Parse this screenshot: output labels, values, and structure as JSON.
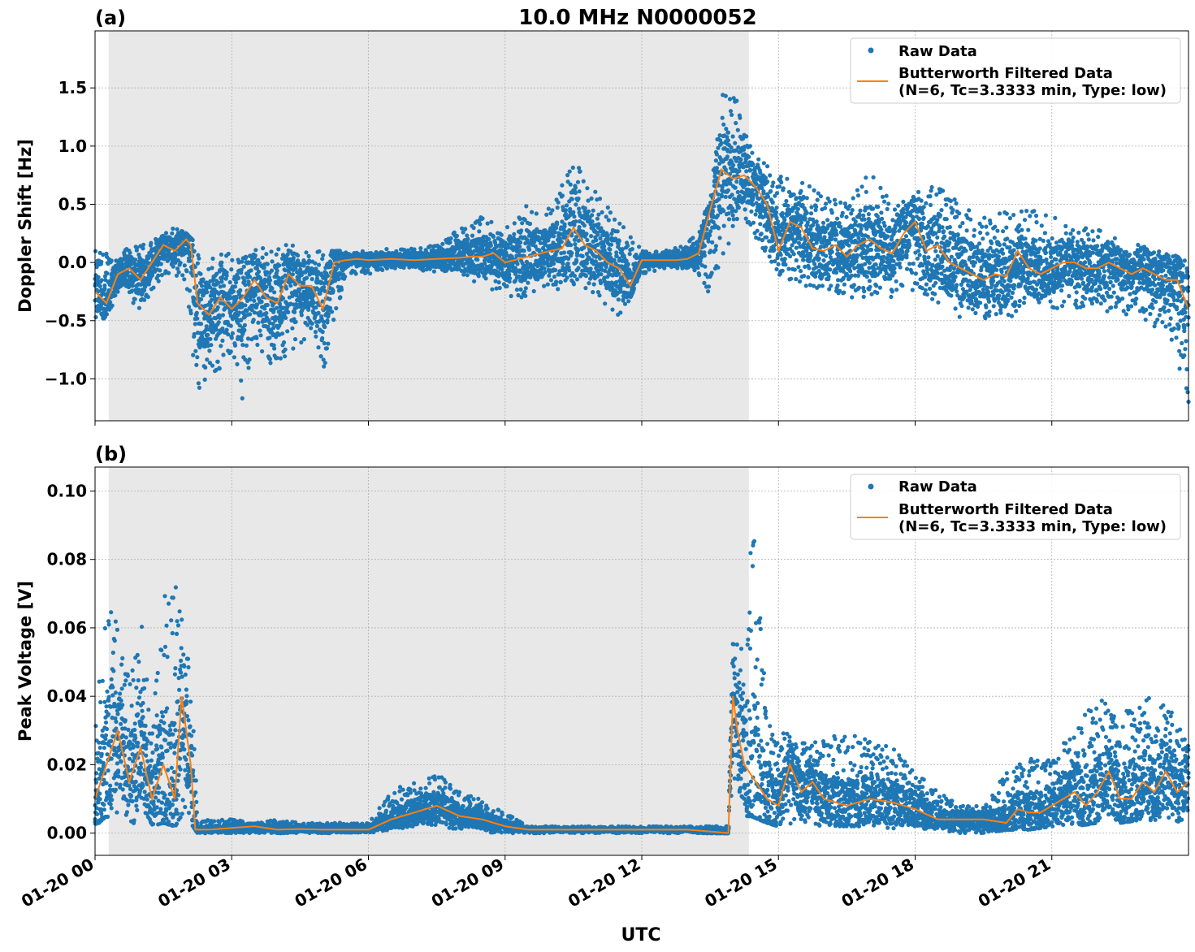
{
  "figure": {
    "title": "10.0 MHz N0000052",
    "xlabel": "UTC",
    "x_tick_labels": [
      "01-20 00",
      "01-20 03",
      "01-20 06",
      "01-20 09",
      "01-20 12",
      "01-20 15",
      "01-20 18",
      "01-20 21"
    ]
  },
  "colors": {
    "raw": "#1f77b4",
    "filtered": "#ff7f0e",
    "shade": "#e8e8e8",
    "grid": "#b0b0b0"
  },
  "chart_data": [
    {
      "type": "scatter",
      "panel_label": "(a)",
      "ylabel": "Doppler Shift [Hz]",
      "xlim_hours": [
        0,
        24
      ],
      "ylim": [
        -1.36,
        1.99
      ],
      "yticks": [
        -1.0,
        -0.5,
        0.0,
        0.5,
        1.0,
        1.5
      ],
      "ytick_labels": [
        "−1.0",
        "−0.5",
        "0.0",
        "0.5",
        "1.0",
        "1.5"
      ],
      "grid": true,
      "night_shade_hours": [
        0.3,
        14.35
      ],
      "legend": {
        "placement": "top-right",
        "raw_label": "Raw Data",
        "filtered_label_1": "Butterworth Filtered Data",
        "filtered_label_2": "(N=6, Tc=3.3333 min, Type: low)"
      },
      "series": [
        {
          "name": "Butterworth Filtered Data",
          "x_hours": [
            0.0,
            0.25,
            0.5,
            0.75,
            1.0,
            1.25,
            1.5,
            1.75,
            2.0,
            2.1,
            2.25,
            2.5,
            2.75,
            3.0,
            3.25,
            3.5,
            3.75,
            4.0,
            4.25,
            4.5,
            4.75,
            5.0,
            5.25,
            5.5,
            5.75,
            6.0,
            6.5,
            7.0,
            7.5,
            8.0,
            8.25,
            8.5,
            8.75,
            9.0,
            9.5,
            10.0,
            10.25,
            10.5,
            10.75,
            11.0,
            11.25,
            11.5,
            11.75,
            12.0,
            12.25,
            12.5,
            12.75,
            13.0,
            13.25,
            13.5,
            13.75,
            14.0,
            14.25,
            14.5,
            14.75,
            15.0,
            15.25,
            15.5,
            15.75,
            16.0,
            16.25,
            16.5,
            16.75,
            17.0,
            17.25,
            17.5,
            17.75,
            18.0,
            18.25,
            18.5,
            18.75,
            19.0,
            19.25,
            19.5,
            19.75,
            20.0,
            20.25,
            20.5,
            20.75,
            21.0,
            21.25,
            21.5,
            21.75,
            22.0,
            22.25,
            22.5,
            22.75,
            23.0,
            23.25,
            23.5,
            23.75,
            24.0
          ],
          "values": [
            -0.25,
            -0.35,
            -0.1,
            -0.05,
            -0.15,
            0.0,
            0.15,
            0.1,
            0.2,
            0.15,
            -0.35,
            -0.45,
            -0.3,
            -0.4,
            -0.3,
            -0.15,
            -0.3,
            -0.35,
            -0.1,
            -0.2,
            -0.2,
            -0.4,
            0.0,
            0.02,
            0.03,
            0.02,
            0.03,
            0.02,
            0.03,
            0.04,
            0.05,
            0.05,
            0.08,
            0.0,
            0.05,
            0.1,
            0.12,
            0.3,
            0.15,
            0.1,
            0.0,
            -0.05,
            -0.2,
            0.02,
            0.02,
            0.02,
            0.02,
            0.03,
            0.08,
            0.45,
            0.8,
            0.72,
            0.75,
            0.65,
            0.5,
            0.1,
            0.35,
            0.3,
            0.12,
            0.1,
            0.15,
            0.05,
            0.15,
            0.2,
            0.12,
            0.08,
            0.25,
            0.35,
            0.1,
            0.15,
            0.0,
            -0.05,
            -0.1,
            -0.15,
            -0.1,
            -0.12,
            0.1,
            -0.05,
            -0.1,
            -0.05,
            0.0,
            0.0,
            -0.05,
            -0.05,
            0.0,
            -0.05,
            -0.1,
            -0.05,
            -0.1,
            -0.15,
            -0.15,
            -0.4
          ]
        },
        {
          "name": "Raw Data",
          "x_hours": [
            0.0,
            0.5,
            1.0,
            1.5,
            1.75,
            2.0,
            2.25,
            2.5,
            2.75,
            3.0,
            3.25,
            3.5,
            3.75,
            4.0,
            4.25,
            4.5,
            4.75,
            5.0,
            5.5,
            6.0,
            6.5,
            7.0,
            7.5,
            8.0,
            8.5,
            9.0,
            9.5,
            10.0,
            10.5,
            11.0,
            11.5,
            12.0,
            12.5,
            13.0,
            13.25,
            13.5,
            13.75,
            14.0,
            14.25,
            14.5,
            15.0,
            15.5,
            16.0,
            16.5,
            17.0,
            17.5,
            18.0,
            18.5,
            19.0,
            19.5,
            20.0,
            20.5,
            21.0,
            21.5,
            22.0,
            22.5,
            23.0,
            23.5,
            24.0
          ],
          "min": [
            -0.6,
            -0.3,
            -0.4,
            -0.1,
            -0.1,
            -0.2,
            -1.2,
            -0.9,
            -1.0,
            -0.8,
            -1.2,
            -0.7,
            -0.8,
            -1.0,
            -0.8,
            -0.7,
            -0.6,
            -1.0,
            -0.1,
            -0.1,
            -0.05,
            -0.05,
            -0.1,
            -0.1,
            -0.2,
            -0.3,
            -0.3,
            -0.2,
            -0.3,
            -0.3,
            -0.5,
            -0.1,
            -0.05,
            -0.05,
            -0.1,
            -0.3,
            0.0,
            0.2,
            0.4,
            0.2,
            -0.1,
            -0.2,
            -0.25,
            -0.3,
            -0.3,
            -0.3,
            -0.25,
            -0.35,
            -0.5,
            -0.5,
            -0.55,
            -0.3,
            -0.4,
            -0.4,
            -0.4,
            -0.45,
            -0.5,
            -0.6,
            -1.2
          ],
          "max": [
            0.1,
            0.1,
            0.15,
            0.25,
            0.3,
            0.25,
            0.15,
            0.1,
            0.1,
            0.1,
            0.1,
            0.15,
            0.15,
            0.15,
            0.15,
            0.15,
            0.1,
            0.1,
            0.1,
            0.1,
            0.12,
            0.12,
            0.15,
            0.3,
            0.4,
            0.3,
            0.5,
            0.5,
            0.9,
            0.6,
            0.4,
            0.1,
            0.1,
            0.15,
            0.35,
            0.5,
            1.5,
            1.5,
            1.2,
            0.9,
            0.8,
            0.7,
            0.6,
            0.5,
            0.8,
            0.5,
            0.6,
            0.7,
            0.5,
            0.4,
            0.45,
            0.5,
            0.4,
            0.3,
            0.3,
            0.2,
            0.15,
            0.1,
            0.0
          ]
        }
      ]
    },
    {
      "type": "scatter",
      "panel_label": "(b)",
      "ylabel": "Peak Voltage [V]",
      "xlim_hours": [
        0,
        24
      ],
      "ylim": [
        -0.0065,
        0.107
      ],
      "yticks": [
        0.0,
        0.02,
        0.04,
        0.06,
        0.08,
        0.1
      ],
      "ytick_labels": [
        "0.00",
        "0.02",
        "0.04",
        "0.06",
        "0.08",
        "0.10"
      ],
      "grid": true,
      "night_shade_hours": [
        0.3,
        14.35
      ],
      "legend": {
        "placement": "top-right",
        "raw_label": "Raw Data",
        "filtered_label_1": "Butterworth Filtered Data",
        "filtered_label_2": "(N=6, Tc=3.3333 min, Type: low)"
      },
      "series": [
        {
          "name": "Butterworth Filtered Data",
          "x_hours": [
            0.0,
            0.25,
            0.5,
            0.75,
            1.0,
            1.25,
            1.5,
            1.75,
            1.9,
            2.0,
            2.1,
            2.2,
            2.5,
            3.0,
            3.5,
            4.0,
            4.5,
            5.0,
            5.5,
            6.0,
            6.5,
            7.0,
            7.5,
            8.0,
            8.5,
            9.0,
            9.5,
            10.0,
            11.0,
            12.0,
            13.0,
            13.9,
            14.0,
            14.1,
            14.25,
            14.5,
            14.75,
            15.0,
            15.25,
            15.5,
            15.75,
            16.0,
            16.5,
            17.0,
            17.5,
            18.0,
            18.5,
            19.0,
            19.5,
            20.0,
            20.25,
            20.5,
            20.75,
            21.0,
            21.25,
            21.5,
            21.75,
            22.0,
            22.25,
            22.5,
            22.75,
            23.0,
            23.25,
            23.5,
            23.75,
            24.0
          ],
          "values": [
            0.01,
            0.02,
            0.03,
            0.015,
            0.025,
            0.01,
            0.02,
            0.01,
            0.04,
            0.03,
            0.02,
            0.001,
            0.001,
            0.0015,
            0.002,
            0.001,
            0.0012,
            0.001,
            0.001,
            0.001,
            0.004,
            0.006,
            0.008,
            0.005,
            0.004,
            0.002,
            0.001,
            0.001,
            0.001,
            0.001,
            0.001,
            0.0,
            0.04,
            0.03,
            0.02,
            0.015,
            0.01,
            0.008,
            0.02,
            0.012,
            0.015,
            0.01,
            0.008,
            0.01,
            0.009,
            0.007,
            0.004,
            0.004,
            0.004,
            0.003,
            0.007,
            0.006,
            0.006,
            0.008,
            0.01,
            0.012,
            0.008,
            0.012,
            0.018,
            0.01,
            0.01,
            0.015,
            0.012,
            0.018,
            0.012,
            0.015
          ]
        },
        {
          "name": "Raw Data",
          "x_hours": [
            0.0,
            0.25,
            0.5,
            0.75,
            1.0,
            1.25,
            1.5,
            1.75,
            2.0,
            2.15,
            2.25,
            2.5,
            3.0,
            3.5,
            4.0,
            4.5,
            5.0,
            5.5,
            6.0,
            6.5,
            7.0,
            7.5,
            8.0,
            8.5,
            9.0,
            9.5,
            10.0,
            11.0,
            12.0,
            13.0,
            13.9,
            14.0,
            14.1,
            14.25,
            14.4,
            14.75,
            15.0,
            15.5,
            16.0,
            16.5,
            17.0,
            17.5,
            18.0,
            18.5,
            19.0,
            19.5,
            20.0,
            20.5,
            21.0,
            21.5,
            22.0,
            22.5,
            23.0,
            23.5,
            24.0
          ],
          "min": [
            0.002,
            0.005,
            0.003,
            0.002,
            0.004,
            0.002,
            0.003,
            0.002,
            0.005,
            0.002,
            0.0,
            0.0,
            0.0,
            0.0,
            0.0,
            0.0,
            0.0,
            0.0,
            0.0,
            0.001,
            0.002,
            0.002,
            0.001,
            0.0,
            0.0,
            0.0,
            0.0,
            0.0,
            0.0,
            0.0,
            0.0,
            0.01,
            0.01,
            0.005,
            0.005,
            0.003,
            0.002,
            0.003,
            0.002,
            0.002,
            0.002,
            0.001,
            0.001,
            0.001,
            0.0,
            0.0,
            0.001,
            0.001,
            0.002,
            0.002,
            0.003,
            0.003,
            0.004,
            0.003,
            0.003
          ],
          "max": [
            0.03,
            0.07,
            0.06,
            0.045,
            0.065,
            0.03,
            0.07,
            0.075,
            0.06,
            0.04,
            0.003,
            0.004,
            0.004,
            0.003,
            0.004,
            0.003,
            0.003,
            0.003,
            0.003,
            0.012,
            0.016,
            0.018,
            0.012,
            0.01,
            0.006,
            0.002,
            0.002,
            0.002,
            0.002,
            0.002,
            0.002,
            0.07,
            0.065,
            0.055,
            0.102,
            0.035,
            0.03,
            0.03,
            0.027,
            0.03,
            0.027,
            0.025,
            0.018,
            0.012,
            0.008,
            0.008,
            0.018,
            0.022,
            0.025,
            0.03,
            0.04,
            0.035,
            0.04,
            0.038,
            0.03
          ]
        }
      ]
    }
  ]
}
